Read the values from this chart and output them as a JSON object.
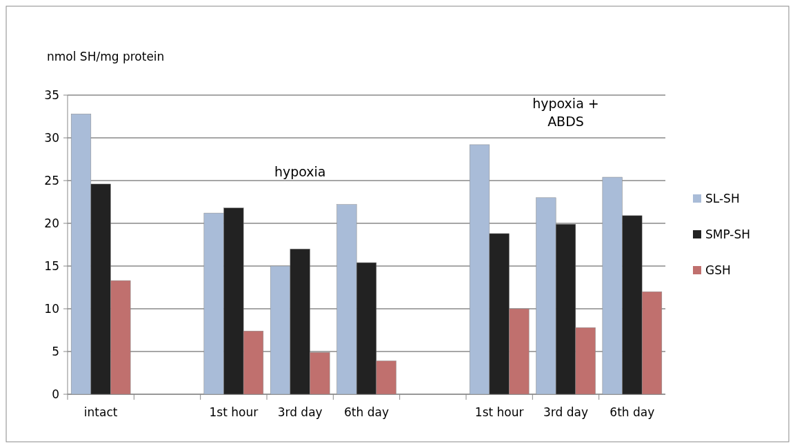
{
  "chart_data": {
    "type": "bar",
    "ylabel": "nmol SH/mg  protein",
    "categories": [
      "intact",
      null,
      "1st hour",
      "3rd day",
      "6th day",
      null,
      "1st hour",
      "3rd day",
      "6th day"
    ],
    "series": [
      {
        "name": "SL-SH",
        "color": "#a9bcd8",
        "values": [
          32.8,
          null,
          21.2,
          15.0,
          22.2,
          null,
          29.2,
          23.0,
          25.4
        ]
      },
      {
        "name": "SMP-SH",
        "color": "#222222",
        "values": [
          24.6,
          null,
          21.8,
          17.0,
          15.4,
          null,
          18.8,
          19.9,
          20.9
        ]
      },
      {
        "name": "GSH",
        "color": "#c0706e",
        "values": [
          13.3,
          null,
          7.4,
          4.9,
          3.9,
          null,
          10.0,
          7.8,
          12.0
        ]
      }
    ],
    "ylim": [
      0,
      35
    ],
    "yticks": [
      0,
      5,
      10,
      15,
      20,
      25,
      30,
      35
    ],
    "grid": "y",
    "legend": "right",
    "annotations": [
      "hypoxia",
      "hypoxia + ABDS"
    ]
  }
}
